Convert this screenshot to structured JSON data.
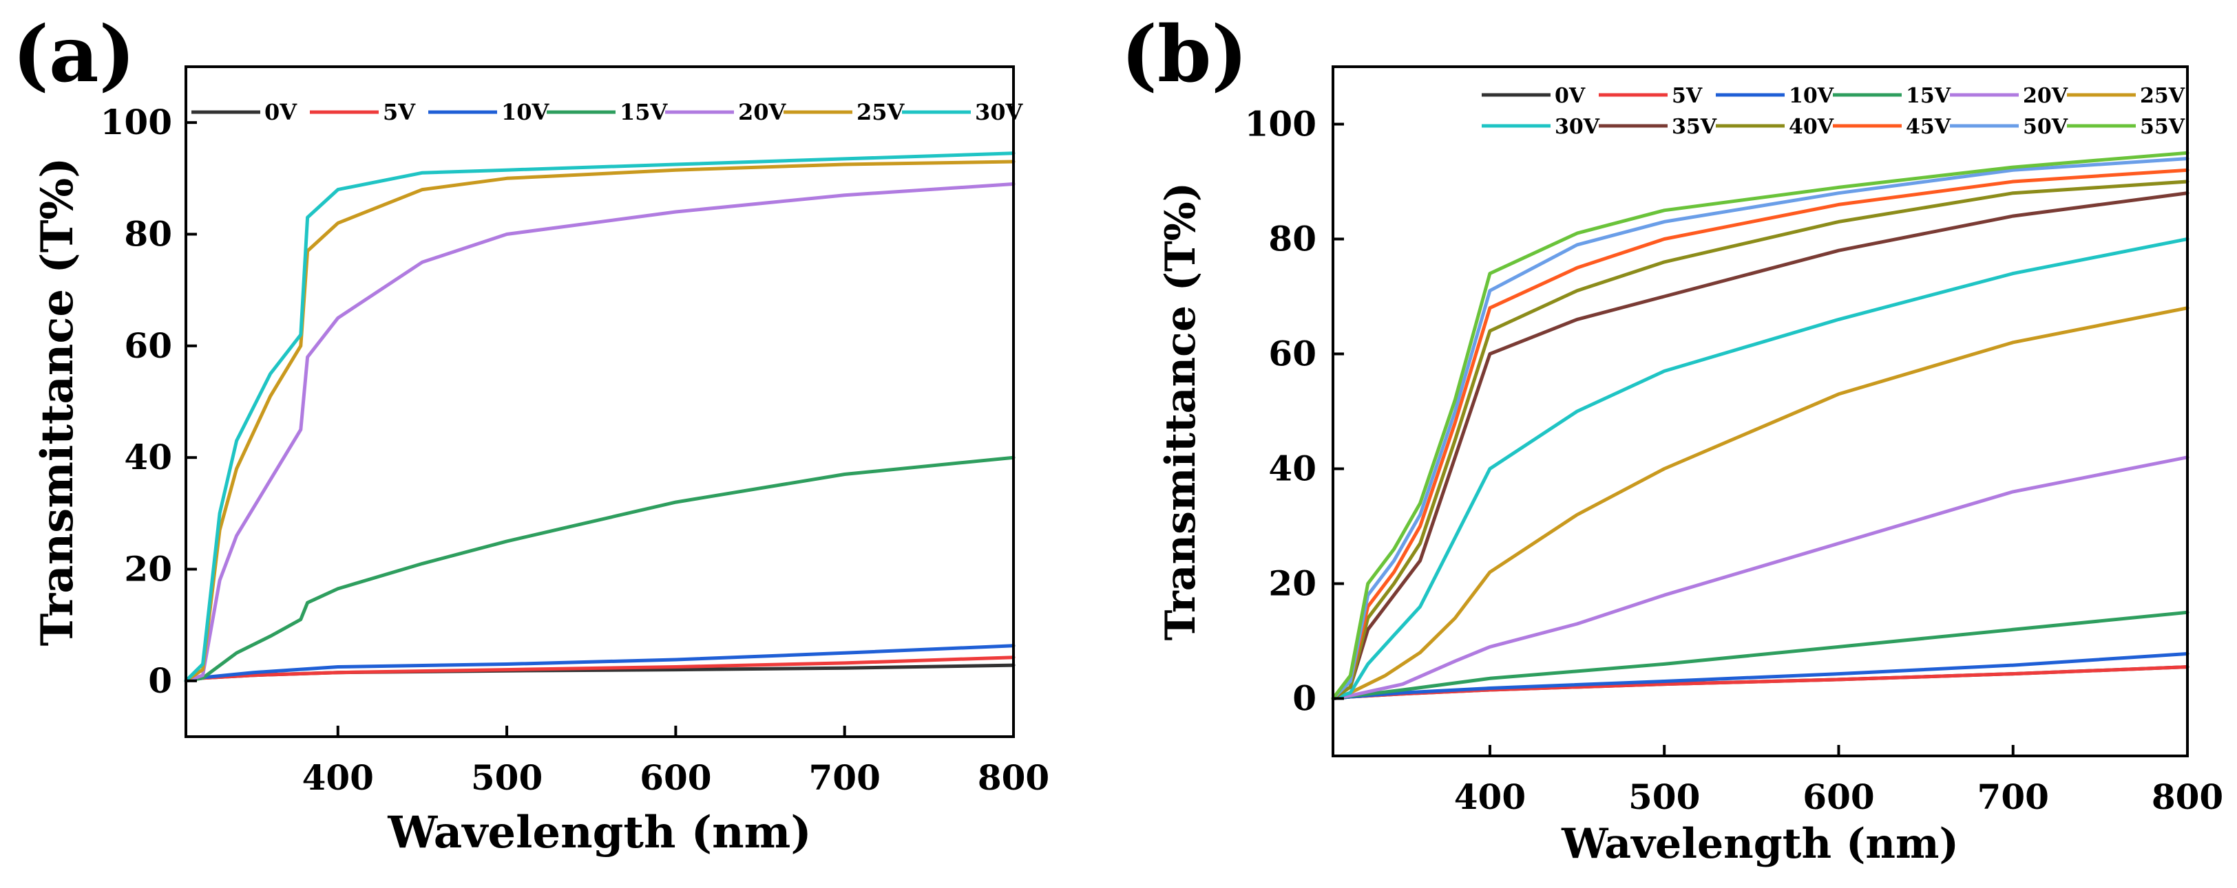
{
  "figure": {
    "panels": [
      "(a)",
      "(b)"
    ]
  },
  "colors": {
    "0V": "#333333",
    "5V": "#ee3b3b",
    "10V": "#1f5fd6",
    "15V": "#2e9e5e",
    "20V": "#b07be0",
    "25V": "#c9991e",
    "30V": "#1fc4c4",
    "35V": "#7a3b34",
    "40V": "#8c8c1a",
    "45V": "#ff5a1f",
    "50V": "#6a9ee8",
    "55V": "#6ac33a"
  },
  "chart_data": [
    {
      "type": "line",
      "panel": "(a)",
      "title": "",
      "xlabel": "Wavelength (nm)",
      "ylabel": "Transmittance (T%)",
      "xlim": [
        310,
        800
      ],
      "ylim": [
        -10,
        110
      ],
      "xticks": [
        400,
        500,
        600,
        700,
        800
      ],
      "yticks": [
        0,
        20,
        40,
        60,
        80,
        100
      ],
      "legend_position": "top",
      "series": [
        {
          "name": "0V",
          "x": [
            310,
            320,
            350,
            400,
            500,
            600,
            700,
            800
          ],
          "y": [
            0,
            0.5,
            1,
            1.5,
            1.8,
            2.0,
            2.3,
            2.8
          ]
        },
        {
          "name": "5V",
          "x": [
            310,
            320,
            350,
            400,
            500,
            600,
            700,
            800
          ],
          "y": [
            0,
            0.5,
            1,
            1.5,
            2.0,
            2.5,
            3.2,
            4.2
          ]
        },
        {
          "name": "10V",
          "x": [
            310,
            320,
            350,
            400,
            500,
            600,
            700,
            800
          ],
          "y": [
            0,
            0.6,
            1.5,
            2.5,
            3.0,
            3.8,
            5.0,
            6.3
          ]
        },
        {
          "name": "15V",
          "x": [
            310,
            320,
            340,
            360,
            378,
            382,
            400,
            450,
            500,
            600,
            700,
            800
          ],
          "y": [
            0,
            0.5,
            5,
            8,
            11,
            14,
            16.5,
            21,
            25,
            32,
            37,
            40
          ]
        },
        {
          "name": "20V",
          "x": [
            310,
            320,
            330,
            340,
            360,
            378,
            382,
            400,
            450,
            500,
            600,
            700,
            800
          ],
          "y": [
            0,
            1,
            18,
            26,
            36,
            45,
            58,
            65,
            75,
            80,
            84,
            87,
            89
          ]
        },
        {
          "name": "25V",
          "x": [
            310,
            320,
            330,
            340,
            360,
            378,
            382,
            400,
            450,
            500,
            600,
            700,
            800
          ],
          "y": [
            0,
            2,
            27,
            38,
            51,
            60,
            77,
            82,
            88,
            90,
            91.5,
            92.5,
            93
          ]
        },
        {
          "name": "30V",
          "x": [
            310,
            320,
            330,
            340,
            360,
            378,
            382,
            400,
            450,
            500,
            600,
            700,
            800
          ],
          "y": [
            0,
            3,
            30,
            43,
            55,
            62,
            83,
            88,
            91,
            91.5,
            92.5,
            93.5,
            94.5
          ]
        }
      ]
    },
    {
      "type": "line",
      "panel": "(b)",
      "title": "",
      "xlabel": "Wavelength (nm)",
      "ylabel": "Transmittance (T%)",
      "xlim": [
        310,
        800
      ],
      "ylim": [
        -10,
        110
      ],
      "xticks": [
        400,
        500,
        600,
        700,
        800
      ],
      "yticks": [
        0,
        20,
        40,
        60,
        80,
        100
      ],
      "legend_position": "top",
      "series": [
        {
          "name": "0V",
          "x": [
            310,
            320,
            350,
            400,
            500,
            600,
            700,
            800
          ],
          "y": [
            0,
            0.3,
            0.8,
            1.5,
            2.5,
            3.3,
            4.3,
            5.5
          ]
        },
        {
          "name": "5V",
          "x": [
            310,
            320,
            350,
            400,
            500,
            600,
            700,
            800
          ],
          "y": [
            0,
            0.3,
            0.8,
            1.5,
            2.5,
            3.3,
            4.3,
            5.5
          ]
        },
        {
          "name": "10V",
          "x": [
            310,
            320,
            350,
            400,
            500,
            600,
            700,
            800
          ],
          "y": [
            0,
            0.3,
            1.0,
            1.8,
            3.0,
            4.3,
            5.8,
            7.8
          ]
        },
        {
          "name": "15V",
          "x": [
            310,
            320,
            350,
            400,
            500,
            600,
            700,
            800
          ],
          "y": [
            0,
            0.4,
            1.5,
            3.5,
            6.0,
            9.0,
            12,
            15
          ]
        },
        {
          "name": "20V",
          "x": [
            310,
            320,
            350,
            380,
            400,
            450,
            500,
            600,
            700,
            800
          ],
          "y": [
            0,
            0.5,
            2.5,
            6.5,
            9,
            13,
            18,
            27,
            36,
            42
          ]
        },
        {
          "name": "25V",
          "x": [
            310,
            320,
            340,
            360,
            380,
            400,
            450,
            500,
            600,
            700,
            800
          ],
          "y": [
            0,
            1,
            4,
            8,
            14,
            22,
            32,
            40,
            53,
            62,
            68
          ]
        },
        {
          "name": "30V",
          "x": [
            310,
            320,
            330,
            345,
            360,
            380,
            400,
            450,
            500,
            600,
            700,
            800
          ],
          "y": [
            0,
            1,
            6,
            11,
            16,
            28,
            40,
            50,
            57,
            66,
            74,
            80
          ]
        },
        {
          "name": "35V",
          "x": [
            310,
            320,
            330,
            345,
            360,
            380,
            400,
            450,
            500,
            600,
            700,
            800
          ],
          "y": [
            0,
            2,
            12,
            18,
            24,
            42,
            60,
            66,
            70,
            78,
            84,
            88
          ]
        },
        {
          "name": "40V",
          "x": [
            310,
            320,
            330,
            345,
            360,
            380,
            400,
            450,
            500,
            600,
            700,
            800
          ],
          "y": [
            0,
            2,
            14,
            20,
            27,
            45,
            64,
            71,
            76,
            83,
            88,
            90
          ]
        },
        {
          "name": "45V",
          "x": [
            310,
            320,
            330,
            345,
            360,
            380,
            400,
            450,
            500,
            600,
            700,
            800
          ],
          "y": [
            0,
            3,
            16,
            22,
            30,
            48,
            68,
            75,
            80,
            86,
            90,
            92
          ]
        },
        {
          "name": "50V",
          "x": [
            310,
            320,
            330,
            345,
            360,
            380,
            400,
            450,
            500,
            600,
            700,
            800
          ],
          "y": [
            0,
            3,
            18,
            24,
            32,
            50,
            71,
            79,
            83,
            88,
            92,
            94
          ]
        },
        {
          "name": "55V",
          "x": [
            310,
            320,
            330,
            345,
            360,
            380,
            400,
            450,
            500,
            600,
            700,
            800
          ],
          "y": [
            0,
            4,
            20,
            26,
            34,
            52,
            74,
            81,
            85,
            89,
            92.5,
            95
          ]
        }
      ]
    }
  ]
}
